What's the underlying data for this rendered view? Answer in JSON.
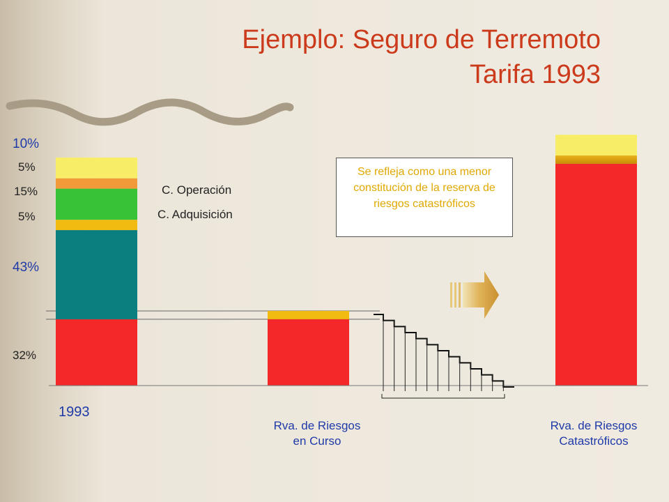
{
  "title": {
    "line1": "Ejemplo: Seguro de Terremoto",
    "line2": "Tarifa 1993"
  },
  "colors": {
    "title": "#cc3a1c",
    "label_blue": "#1f3aa8",
    "note_text": "#e0a800",
    "red": "#f42828",
    "teal": "#0b7f80",
    "amber": "#f2bb11",
    "green": "#37c337",
    "orange": "#f29a3a",
    "yellow": "#f7ed66"
  },
  "labels": {
    "pct_10": "10%",
    "pct_5a": "5%",
    "pct_15": "15%",
    "pct_5b": "5%",
    "pct_43": "43%",
    "pct_32": "32%",
    "c_operacion": "C. Operación",
    "c_adquisicion": "C. Adquisición",
    "year": "1993",
    "rva_curso_l1": "Rva. de Riesgos",
    "rva_curso_l2": "en Curso",
    "rva_cat_l1": "Rva. de Riesgos",
    "rva_cat_l2": "Catastróficos",
    "note": "Se refleja como una menor constitución de la reserva de riesgos catastróficos"
  },
  "chart_data": {
    "type": "bar",
    "stacked": true,
    "categories": [
      "1993",
      "Rva. de Riesgos en Curso",
      "Rva. de Riesgos Catastróficos"
    ],
    "stacks": [
      {
        "category": "1993",
        "segments": [
          {
            "value": 32,
            "color": "#f42828"
          },
          {
            "value": 43,
            "color": "#0b7f80"
          },
          {
            "value": 5,
            "color": "#f2bb11"
          },
          {
            "value": 15,
            "color": "#37c337"
          },
          {
            "value": 5,
            "color": "#f29a3a"
          },
          {
            "value": 10,
            "color": "#f7ed66"
          }
        ]
      },
      {
        "category": "Rva. de Riesgos en Curso",
        "segments": [
          {
            "value": 32,
            "color": "#f42828"
          },
          {
            "value": 4,
            "color": "#f2bb11"
          }
        ]
      },
      {
        "category": "Rva. de Riesgos Catastróficos",
        "segments": [
          {
            "value": 107,
            "color": "#f42828"
          },
          {
            "value": 4,
            "color": "#e3a806"
          },
          {
            "value": 10,
            "color": "#f7ed66"
          }
        ]
      }
    ],
    "ylim": [
      0,
      110
    ],
    "reference_lines": [
      32,
      36
    ],
    "staircase_steps": 12
  }
}
